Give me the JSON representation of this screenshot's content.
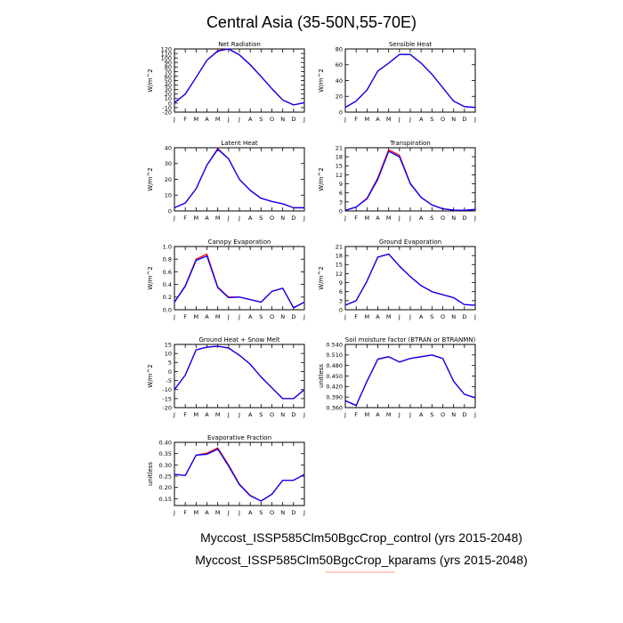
{
  "title": "Central Asia (35-50N,55-70E)",
  "legend": {
    "entries": [
      {
        "label": "Myccost_ISSP585Clm50BgcCrop_control (yrs 2015-2048)",
        "color": "#0000ff"
      },
      {
        "label": "Myccost_ISSP585Clm50BgcCrop_kparams (yrs 2015-2048)",
        "color": "#ff0000"
      }
    ]
  },
  "chart_data": [
    {
      "type": "line",
      "title": "Net Radiation",
      "ylabel": "W/m^2",
      "categories": [
        "J",
        "F",
        "M",
        "A",
        "M",
        "J",
        "J",
        "A",
        "S",
        "O",
        "N",
        "D",
        "J"
      ],
      "ylim": [
        -20,
        120
      ],
      "yticks": [
        -20,
        -10,
        0,
        10,
        20,
        30,
        40,
        50,
        60,
        70,
        80,
        90,
        100,
        110,
        120
      ],
      "series": [
        {
          "name": "control",
          "values": [
            1,
            20,
            57,
            95,
            115,
            120,
            107,
            85,
            59,
            32,
            7,
            -4,
            1
          ]
        },
        {
          "name": "kparams",
          "values": [
            1,
            20,
            57,
            95,
            116,
            120,
            107,
            85,
            59,
            32,
            7,
            -4,
            1
          ]
        }
      ]
    },
    {
      "type": "line",
      "title": "Sensible Heat",
      "ylabel": "W/m^2",
      "categories": [
        "J",
        "F",
        "M",
        "A",
        "M",
        "J",
        "J",
        "A",
        "S",
        "O",
        "N",
        "D",
        "J"
      ],
      "ylim": [
        0,
        80
      ],
      "yticks": [
        0,
        20,
        40,
        60,
        80
      ],
      "series": [
        {
          "name": "control",
          "values": [
            6,
            14,
            28,
            52,
            62,
            73,
            73,
            62,
            48,
            31,
            14,
            7,
            6
          ]
        },
        {
          "name": "kparams",
          "values": [
            6,
            14,
            28,
            52,
            62,
            73,
            73,
            62,
            48,
            31,
            14,
            7,
            6
          ]
        }
      ]
    },
    {
      "type": "line",
      "title": "Latent Heat",
      "ylabel": "W/m^2",
      "categories": [
        "J",
        "F",
        "M",
        "A",
        "M",
        "J",
        "J",
        "A",
        "S",
        "O",
        "N",
        "D",
        "J"
      ],
      "ylim": [
        0,
        40
      ],
      "yticks": [
        0,
        10,
        20,
        30,
        40
      ],
      "series": [
        {
          "name": "control",
          "values": [
            2,
            5,
            14,
            29,
            39,
            33,
            20,
            13,
            8,
            6,
            4.5,
            2,
            2
          ]
        },
        {
          "name": "kparams",
          "values": [
            2,
            5,
            14,
            29,
            39.5,
            33,
            20,
            13,
            8,
            6,
            4.5,
            2,
            2
          ]
        }
      ]
    },
    {
      "type": "line",
      "title": "Transpiration",
      "ylabel": "W/m^2",
      "categories": [
        "J",
        "F",
        "M",
        "A",
        "M",
        "J",
        "J",
        "A",
        "S",
        "O",
        "N",
        "D",
        "J"
      ],
      "ylim": [
        0,
        21
      ],
      "yticks": [
        0,
        3,
        6,
        9,
        12,
        15,
        18,
        21
      ],
      "series": [
        {
          "name": "control",
          "values": [
            0.2,
            1.3,
            4,
            10.5,
            19.8,
            18,
            9,
            4.5,
            2,
            0.7,
            0.3,
            0.2,
            0.5
          ]
        },
        {
          "name": "kparams",
          "values": [
            0.2,
            1.3,
            4.2,
            11,
            20.3,
            18.5,
            9.2,
            4.5,
            2,
            0.7,
            0.3,
            0.2,
            0.5
          ]
        }
      ]
    },
    {
      "type": "line",
      "title": "Canopy Evaporation",
      "ylabel": "W/m^2",
      "categories": [
        "J",
        "F",
        "M",
        "A",
        "M",
        "J",
        "J",
        "A",
        "S",
        "O",
        "N",
        "D",
        "J"
      ],
      "ylim": [
        0,
        1.0
      ],
      "yticks": [
        0,
        0.2,
        0.4,
        0.6,
        0.8,
        1.0
      ],
      "ytickfmt": 1,
      "series": [
        {
          "name": "control",
          "values": [
            0.12,
            0.37,
            0.78,
            0.85,
            0.35,
            0.19,
            0.2,
            0.16,
            0.12,
            0.29,
            0.34,
            0.03,
            0.12
          ]
        },
        {
          "name": "kparams",
          "values": [
            0.12,
            0.38,
            0.8,
            0.88,
            0.36,
            0.2,
            0.2,
            0.16,
            0.12,
            0.29,
            0.34,
            0.03,
            0.12
          ]
        }
      ]
    },
    {
      "type": "line",
      "title": "Ground Evaporation",
      "ylabel": "W/m^2",
      "categories": [
        "J",
        "F",
        "M",
        "A",
        "M",
        "J",
        "J",
        "A",
        "S",
        "O",
        "N",
        "D",
        "J"
      ],
      "ylim": [
        0,
        21
      ],
      "yticks": [
        0,
        3,
        6,
        9,
        12,
        15,
        18,
        21
      ],
      "series": [
        {
          "name": "control",
          "values": [
            1.5,
            3,
            9.5,
            17.5,
            18.5,
            14.5,
            11,
            8,
            6,
            5,
            4,
            1.7,
            1.5
          ]
        },
        {
          "name": "kparams",
          "values": [
            1.5,
            3,
            9.5,
            17.5,
            18.5,
            14.5,
            11,
            8,
            6,
            5,
            4,
            1.7,
            1.5
          ]
        }
      ]
    },
    {
      "type": "line",
      "title": "Ground Heat + Snow Melt",
      "ylabel": "W/m^2",
      "categories": [
        "J",
        "F",
        "M",
        "A",
        "M",
        "J",
        "J",
        "A",
        "S",
        "O",
        "N",
        "D",
        "J"
      ],
      "ylim": [
        -20,
        15
      ],
      "yticks": [
        -20,
        -15,
        -10,
        -5,
        0,
        5,
        10,
        15
      ],
      "series": [
        {
          "name": "control",
          "values": [
            -10,
            -2,
            12,
            13.5,
            14,
            13,
            9,
            4,
            -3,
            -9,
            -15,
            -15,
            -10
          ]
        },
        {
          "name": "kparams",
          "values": [
            -10,
            -2,
            12,
            13.5,
            14,
            13,
            9,
            4,
            -3,
            -9,
            -15,
            -15,
            -10
          ]
        }
      ]
    },
    {
      "type": "line",
      "title": "Soil moisture factor (BTRAN or BTRANMN)",
      "ylabel": "unitless",
      "categories": [
        "J",
        "F",
        "M",
        "A",
        "M",
        "J",
        "J",
        "A",
        "S",
        "O",
        "N",
        "D",
        "J"
      ],
      "ylim": [
        0.36,
        0.54
      ],
      "yticks": [
        0.36,
        0.39,
        0.42,
        0.45,
        0.48,
        0.51,
        0.54
      ],
      "ytickfmt": 3,
      "series": [
        {
          "name": "control",
          "values": [
            0.38,
            0.366,
            0.435,
            0.498,
            0.505,
            0.49,
            0.5,
            0.505,
            0.51,
            0.5,
            0.435,
            0.398,
            0.388
          ]
        },
        {
          "name": "kparams",
          "values": [
            0.38,
            0.366,
            0.435,
            0.498,
            0.505,
            0.49,
            0.5,
            0.505,
            0.51,
            0.5,
            0.435,
            0.398,
            0.388
          ]
        }
      ]
    },
    {
      "type": "line",
      "title": "Evaporative Fraction",
      "ylabel": "unitless",
      "categories": [
        "J",
        "F",
        "M",
        "A",
        "M",
        "J",
        "J",
        "A",
        "S",
        "O",
        "N",
        "D",
        "J"
      ],
      "ylim": [
        0.12,
        0.4
      ],
      "yticks": [
        0.15,
        0.2,
        0.25,
        0.3,
        0.35,
        0.4
      ],
      "ytickfmt": 2,
      "series": [
        {
          "name": "control",
          "values": [
            0.258,
            0.253,
            0.343,
            0.347,
            0.37,
            0.295,
            0.212,
            0.163,
            0.14,
            0.17,
            0.232,
            0.232,
            0.258
          ]
        },
        {
          "name": "kparams",
          "values": [
            0.258,
            0.253,
            0.343,
            0.352,
            0.375,
            0.3,
            0.215,
            0.165,
            0.14,
            0.17,
            0.232,
            0.232,
            0.258
          ]
        }
      ]
    }
  ]
}
